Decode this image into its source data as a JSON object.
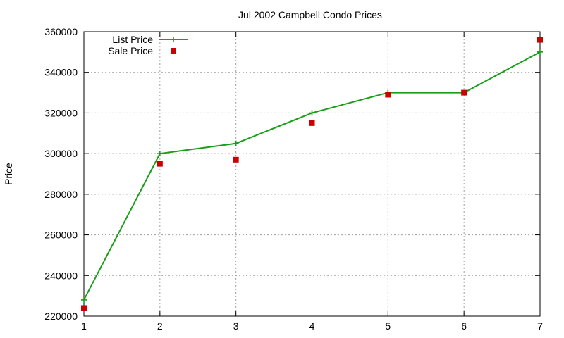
{
  "chart_data": {
    "type": "line",
    "title": "Jul 2002 Campbell Condo Prices",
    "xlabel": "",
    "ylabel": "Price",
    "xlim": [
      1,
      7
    ],
    "ylim": [
      220000,
      360000
    ],
    "x_ticks": [
      1,
      2,
      3,
      4,
      5,
      6,
      7
    ],
    "y_ticks": [
      220000,
      240000,
      260000,
      280000,
      300000,
      320000,
      340000,
      360000
    ],
    "grid": true,
    "legend_position": "top-left",
    "series": [
      {
        "name": "List Price",
        "style": "linespoints",
        "marker": "plus",
        "color": "#1a9e1a",
        "x": [
          1,
          2,
          3,
          4,
          5,
          6,
          7
        ],
        "values": [
          228000,
          300000,
          305000,
          320000,
          330000,
          330000,
          350000
        ]
      },
      {
        "name": "Sale Price",
        "style": "points",
        "marker": "square",
        "color": "#cc0000",
        "x": [
          1,
          2,
          3,
          4,
          5,
          6,
          7
        ],
        "values": [
          224000,
          295000,
          297000,
          315000,
          329000,
          330000,
          356000
        ]
      }
    ]
  }
}
